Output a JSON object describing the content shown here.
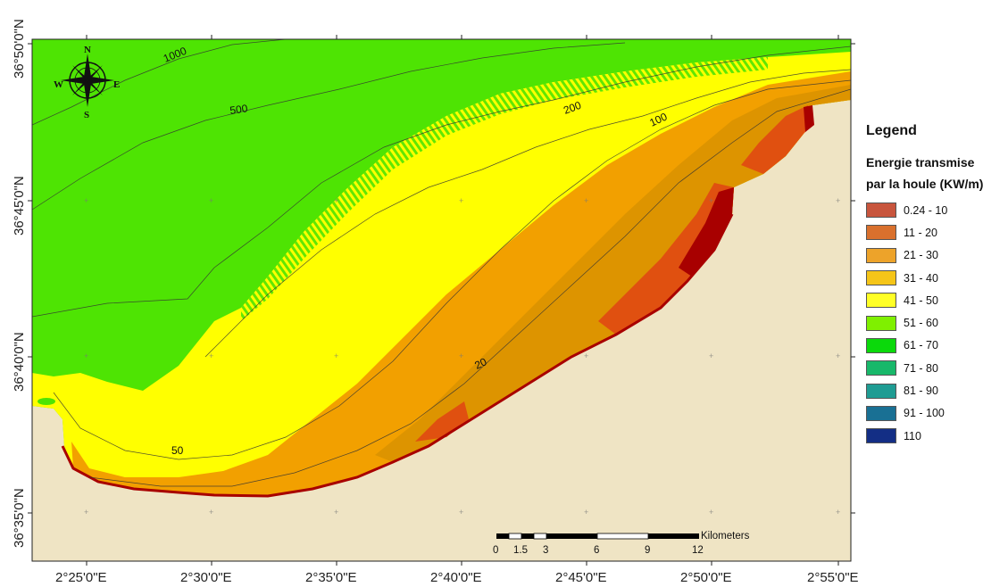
{
  "map": {
    "lat_labels": [
      "36°50'0\"N",
      "36°45'0\"N",
      "36°40'0\"N",
      "36°35'0\"N"
    ],
    "lon_labels": [
      "2°25'0\"E",
      "2°30'0\"E",
      "2°35'0\"E",
      "2°40'0\"E",
      "2°45'0\"E",
      "2°50'0\"E",
      "2°55'0\"E"
    ],
    "contour_labels": [
      "1000",
      "500",
      "200",
      "100",
      "50",
      "20"
    ],
    "compass": {
      "n": "N",
      "s": "S",
      "e": "E",
      "w": "W"
    },
    "scale_bar": {
      "unit": "Kilometers",
      "ticks": [
        "0",
        "1.5",
        "3",
        "6",
        "9",
        "12"
      ]
    },
    "colors": {
      "sea_deep": "#4ee403",
      "band_41_50": "#ffff00",
      "band_31_40": "#f5c500",
      "band_21_30": "#f2a000",
      "band_11_20": "#e05010",
      "band_0_10": "#a80000",
      "land": "#efe4c4"
    }
  },
  "legend": {
    "title": "Legend",
    "subtitle_line1": "Energie transmise",
    "subtitle_line2": "par la houle  (KW/m)",
    "items": [
      {
        "label": "0.24 - 10",
        "color": "#c8553d"
      },
      {
        "label": "11 - 20",
        "color": "#d9702d"
      },
      {
        "label": "21 - 30",
        "color": "#eda32a"
      },
      {
        "label": "31 - 40",
        "color": "#f5c518"
      },
      {
        "label": "41 - 50",
        "color": "#ffff26"
      },
      {
        "label": "51 - 60",
        "color": "#7ff000"
      },
      {
        "label": "61 - 70",
        "color": "#0bd90b"
      },
      {
        "label": "71 - 80",
        "color": "#18b86a"
      },
      {
        "label": "81 - 90",
        "color": "#1f9c93"
      },
      {
        "label": "91 - 100",
        "color": "#197094"
      },
      {
        "label": "110",
        "color": "#132e85"
      }
    ]
  }
}
